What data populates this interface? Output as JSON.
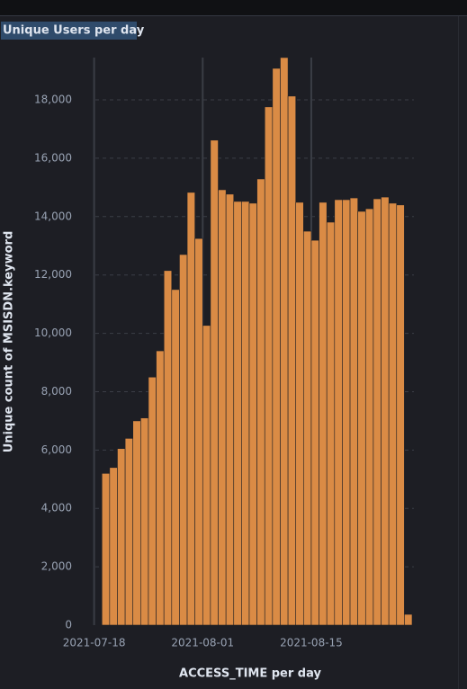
{
  "chart_data": {
    "type": "bar",
    "title": "Unique Users per day",
    "x_label": "ACCESS_TIME per day",
    "y_label": "Unique count of MSISDN.keyword",
    "color": "#da8b45",
    "x": [
      "2021-07-19",
      "2021-07-20",
      "2021-07-21",
      "2021-07-22",
      "2021-07-23",
      "2021-07-24",
      "2021-07-25",
      "2021-07-26",
      "2021-07-27",
      "2021-07-28",
      "2021-07-29",
      "2021-07-30",
      "2021-07-31",
      "2021-08-01",
      "2021-08-02",
      "2021-08-03",
      "2021-08-04",
      "2021-08-05",
      "2021-08-06",
      "2021-08-07",
      "2021-08-08",
      "2021-08-09",
      "2021-08-10",
      "2021-08-11",
      "2021-08-12",
      "2021-08-13",
      "2021-08-14",
      "2021-08-15",
      "2021-08-16",
      "2021-08-17",
      "2021-08-18",
      "2021-08-19",
      "2021-08-20",
      "2021-08-21",
      "2021-08-22",
      "2021-08-23",
      "2021-08-24",
      "2021-08-25",
      "2021-08-26",
      "2021-08-27"
    ],
    "values": [
      5200,
      5400,
      6050,
      6400,
      7000,
      7100,
      8500,
      9400,
      12150,
      11500,
      12700,
      14830,
      13250,
      10270,
      16620,
      14920,
      14770,
      14520,
      14520,
      14460,
      15290,
      17760,
      19080,
      19450,
      18130,
      14490,
      13500,
      13190,
      14490,
      13810,
      14580,
      14580,
      14640,
      14180,
      14270,
      14610,
      14670,
      14460,
      14400,
      370
    ],
    "xlim": [
      "2021-07-17",
      "2021-08-28"
    ],
    "xticks": [
      "2021-07-18",
      "2021-08-01",
      "2021-08-15"
    ],
    "ylim": [
      0,
      19450
    ],
    "yticks": [
      0,
      {
        "value": 2000,
        "label": "2,000"
      },
      {
        "value": 4000,
        "label": "4,000"
      },
      {
        "value": 6000,
        "label": "6,000"
      },
      {
        "value": 8000,
        "label": "8,000"
      },
      {
        "value": 10000,
        "label": "10,000"
      },
      {
        "value": 12000,
        "label": "12,000"
      },
      {
        "value": 14000,
        "label": "14,000"
      },
      {
        "value": 16000,
        "label": "16,000"
      },
      {
        "value": 18000,
        "label": "18,000"
      }
    ],
    "grid": true
  }
}
